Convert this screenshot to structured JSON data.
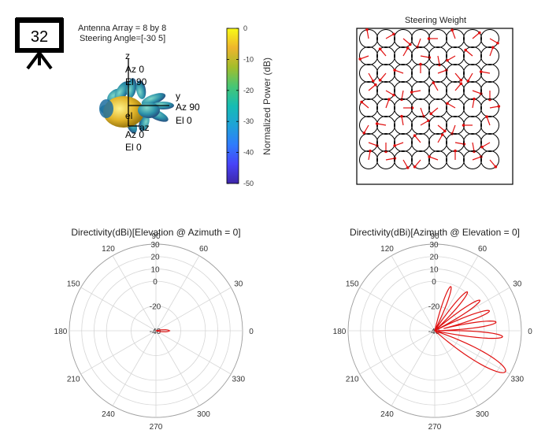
{
  "badge": {
    "number": "32",
    "icon": "presentation-board-icon"
  },
  "info": {
    "line1": "Antenna Array = 8 by 8",
    "line2": "Steering Angle=[-30 5]"
  },
  "pattern3d": {
    "axes": [
      {
        "name": "z",
        "lines": [
          "Az 0",
          "El 90"
        ]
      },
      {
        "name": "y",
        "lines": [
          "Az 90",
          "El 0"
        ]
      },
      {
        "name": "az",
        "lines": [
          "Az 0",
          "El 0"
        ]
      }
    ],
    "extra_label": "el"
  },
  "colorbar": {
    "label": "Normalized Power (dB)",
    "ticks": [
      "0",
      "-10",
      "-20",
      "-30",
      "-40",
      "-50"
    ],
    "range": [
      -50,
      0
    ],
    "colormap": [
      "#3e26a8",
      "#4743f8",
      "#2f7cfc",
      "#1fa2d8",
      "#16bcb3",
      "#46c675",
      "#a3bd2b",
      "#eeb52d",
      "#f9fb15"
    ]
  },
  "steering": {
    "title": "Steering Weight",
    "rows": 8,
    "cols": 8,
    "phases_deg": [
      [
        100,
        30,
        320,
        250,
        180,
        110,
        40,
        330
      ],
      [
        200,
        130,
        60,
        350,
        280,
        210,
        140,
        70
      ],
      [
        300,
        230,
        160,
        90,
        20,
        310,
        240,
        170
      ],
      [
        40,
        330,
        260,
        190,
        120,
        50,
        340,
        270
      ],
      [
        140,
        70,
        0,
        290,
        220,
        150,
        80,
        10
      ],
      [
        240,
        170,
        100,
        30,
        320,
        250,
        180,
        110
      ],
      [
        340,
        270,
        200,
        130,
        60,
        350,
        280,
        210
      ],
      [
        80,
        10,
        300,
        230,
        160,
        90,
        20,
        310
      ]
    ],
    "arrow_color": "#e01010"
  },
  "polar_elevation": {
    "title": "Directivity(dBi)[Elevation @ Azimuth = 0]",
    "angle_labels": [
      "0",
      "30",
      "60",
      "90",
      "120",
      "150",
      "180",
      "210",
      "240",
      "270",
      "300",
      "330"
    ],
    "radial_labels": [
      "30",
      "20",
      "10",
      "0",
      "-20",
      "-40"
    ],
    "radial_range": [
      -40,
      30
    ],
    "line_color": "#e01010",
    "series": [
      {
        "angle_deg": [
          -20,
          -10,
          -6,
          -3,
          0,
          3,
          6,
          10,
          20
        ],
        "value_dbi": [
          -40,
          -36,
          -32,
          -30,
          -29,
          -30,
          -32,
          -36,
          -40
        ]
      }
    ]
  },
  "polar_azimuth": {
    "title": "Directivity(dBi)[Azimuth @ Elevation = 0]",
    "angle_labels": [
      "0",
      "30",
      "60",
      "90",
      "120",
      "150",
      "180",
      "210",
      "240",
      "270",
      "300",
      "330"
    ],
    "radial_labels": [
      "30",
      "20",
      "10",
      "0",
      "-20",
      "-40"
    ],
    "radial_range": [
      -40,
      30
    ],
    "line_color": "#e01010",
    "lobes": [
      {
        "center_deg": -30,
        "peak_dbi": 26
      },
      {
        "center_deg": -5,
        "peak_dbi": 15
      },
      {
        "center_deg": 8,
        "peak_dbi": 10
      },
      {
        "center_deg": 20,
        "peak_dbi": 7
      },
      {
        "center_deg": 34,
        "peak_dbi": 4
      },
      {
        "center_deg": 50,
        "peak_dbi": 1
      },
      {
        "center_deg": 70,
        "peak_dbi": -2
      }
    ]
  }
}
